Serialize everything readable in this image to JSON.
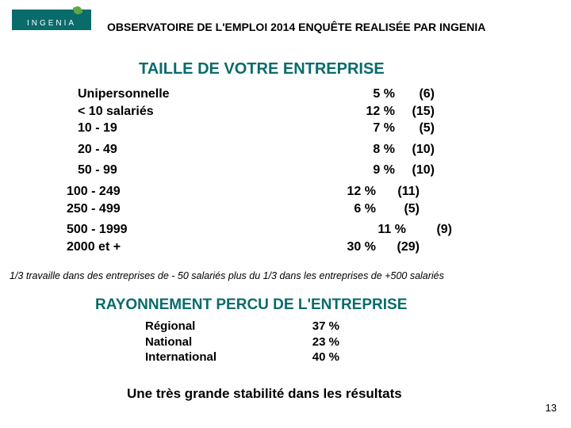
{
  "logo": {
    "text": "INGENIA"
  },
  "header": "OBSERVATOIRE DE L'EMPLOI 2014 ENQUÊTE REALISÉE PAR INGENIA",
  "title1": "TAILLE DE VOTRE ENTREPRISE",
  "taille": {
    "r0": {
      "label": "Unipersonnelle",
      "pct": "5 %",
      "count": "(6)"
    },
    "r1": {
      "label": "< 10 salariés",
      "pct": "12 %",
      "count": "(15)"
    },
    "r2": {
      "label": "10 - 19",
      "pct": "7 %",
      "count": "(5)"
    },
    "r3": {
      "label": "20 - 49",
      "pct": "8 %",
      "count": "(10)"
    },
    "r4": {
      "label": "50 - 99",
      "pct": "9 %",
      "count": "(10)"
    },
    "r5": {
      "label": "100 - 249",
      "pct": "12 %",
      "count": "(11)"
    },
    "r6": {
      "label": "250 - 499",
      "pct": "6 %",
      "count": "(5)"
    },
    "r7": {
      "label": "500 - 1999",
      "pct": "11 %",
      "count": "(9)"
    },
    "r8": {
      "label": "2000 et +",
      "pct": "30 %",
      "count": "(29)"
    }
  },
  "note": "1/3 travaille dans des entreprises de - 50 salariés plus du 1/3 dans les entreprises de +500 salariés",
  "title2": "RAYONNEMENT PERCU DE L'ENTREPRISE",
  "rayon": {
    "r0": {
      "label": "Régional",
      "pct": "37 %"
    },
    "r1": {
      "label": "National",
      "pct": "23 %"
    },
    "r2": {
      "label": "International",
      "pct": "40 %"
    }
  },
  "footer": "Une très grande stabilité dans les résultats",
  "page": "13",
  "colors": {
    "accent": "#0a6b6b",
    "leaf": "#5fa843",
    "text": "#000000",
    "bg": "#ffffff"
  }
}
